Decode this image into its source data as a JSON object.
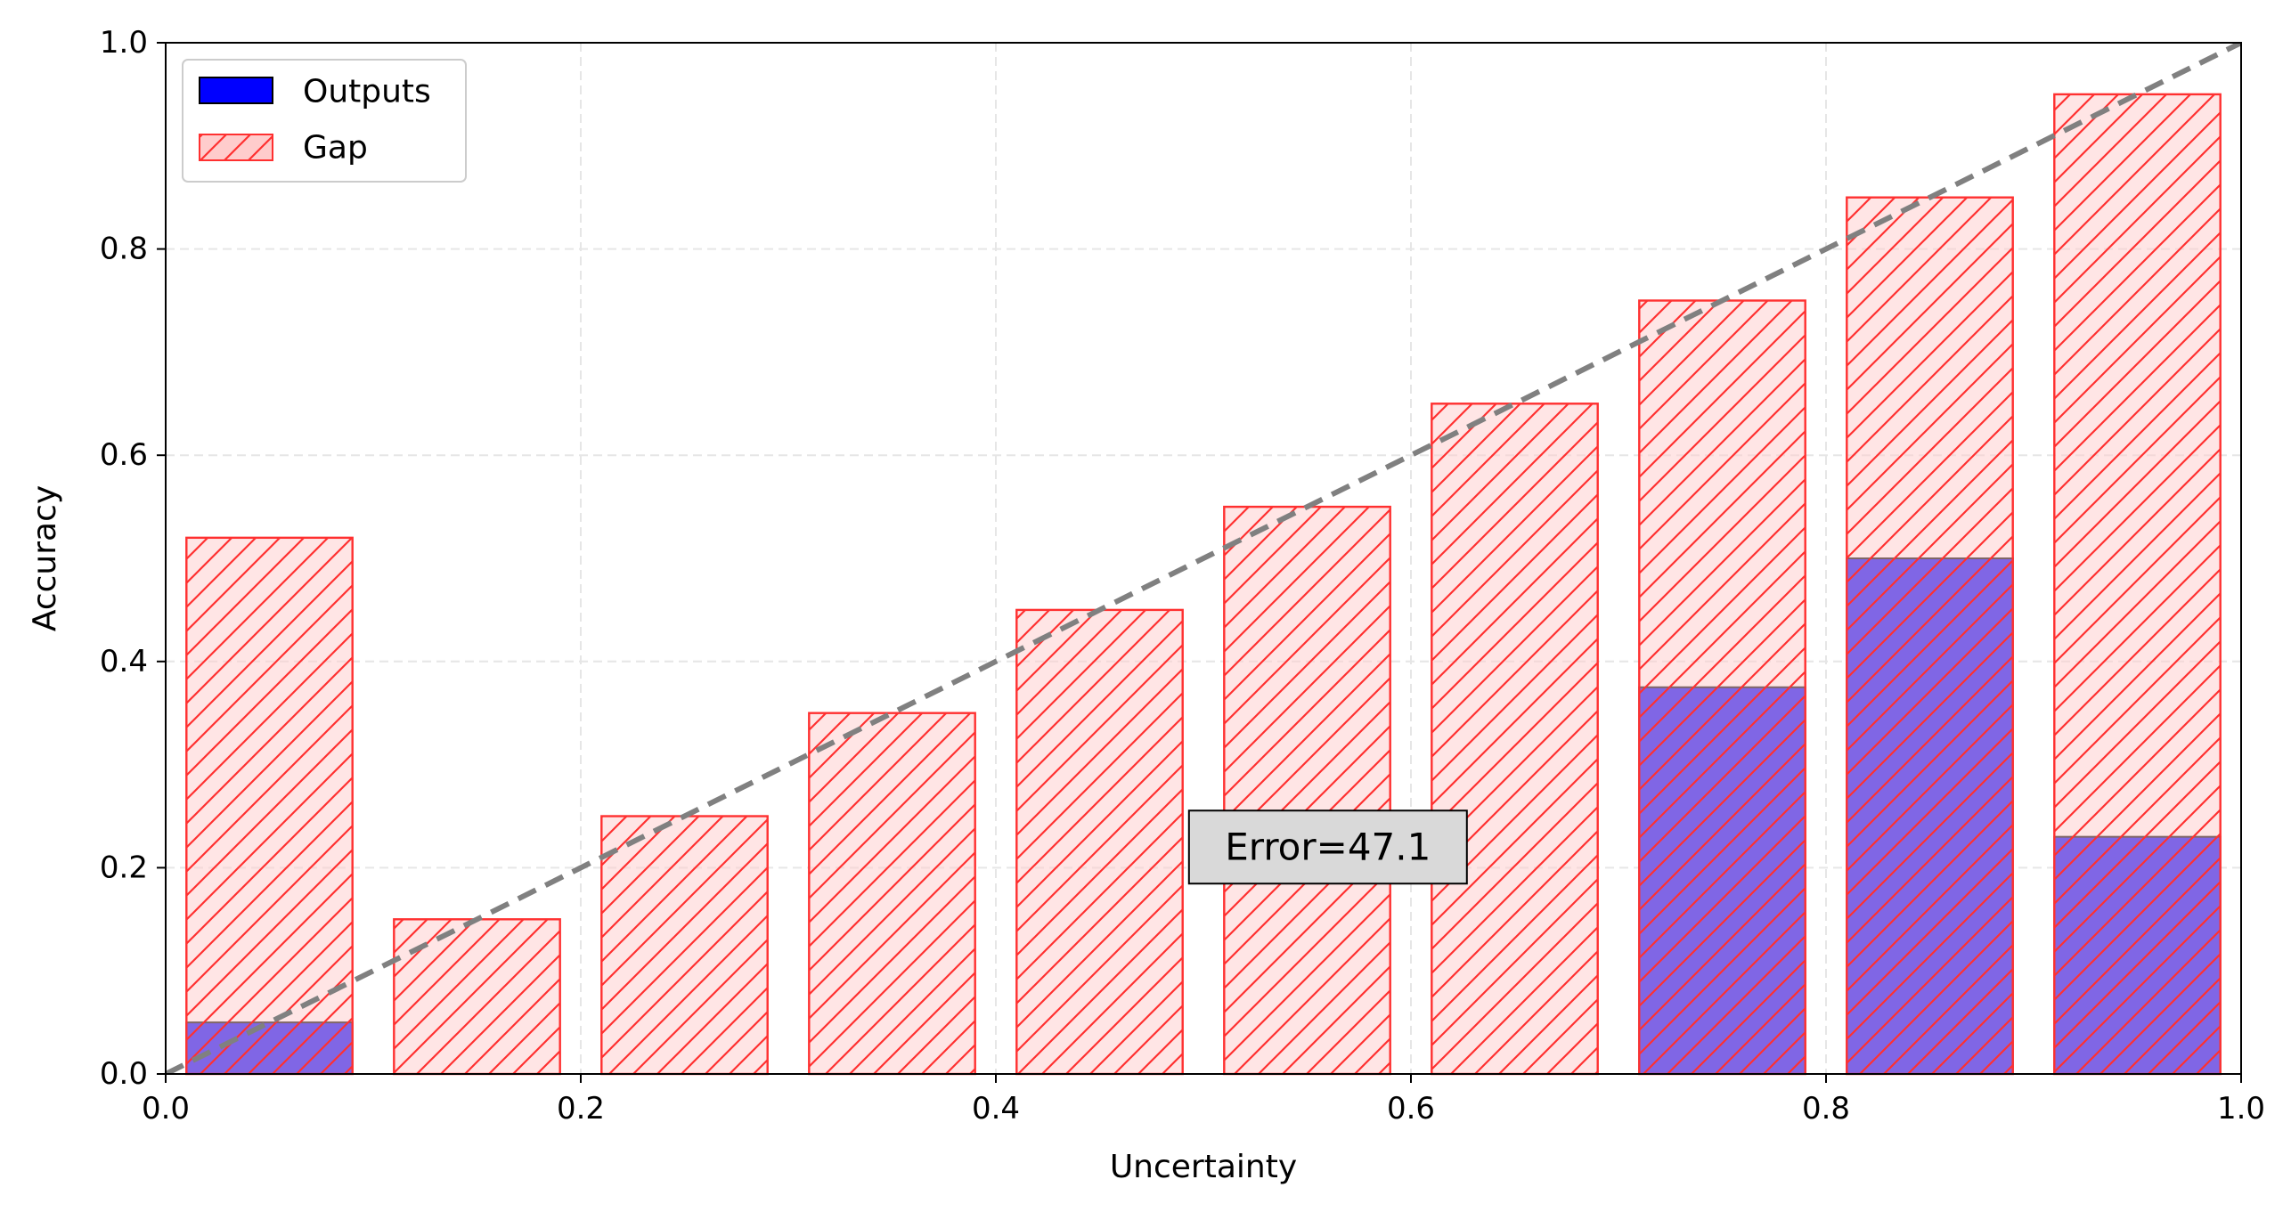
{
  "chart_data": {
    "type": "bar",
    "xlabel": "Uncertainty",
    "ylabel": "Accuracy",
    "xlim": [
      0.0,
      1.0
    ],
    "ylim": [
      0.0,
      1.0
    ],
    "xticks": [
      "0.0",
      "0.2",
      "0.4",
      "0.6",
      "0.8",
      "1.0"
    ],
    "yticks": [
      "0.0",
      "0.2",
      "0.4",
      "0.6",
      "0.8",
      "1.0"
    ],
    "grid": true,
    "legend_position": "top-left",
    "bin_centers": [
      0.05,
      0.15,
      0.25,
      0.35,
      0.45,
      0.55,
      0.65,
      0.75,
      0.85,
      0.95
    ],
    "bar_width": 0.08,
    "series": [
      {
        "name": "Outputs",
        "values": [
          0.05,
          0.0,
          0.0,
          0.0,
          0.0,
          0.0,
          0.0,
          0.375,
          0.5,
          0.23
        ],
        "color": "#0000ff"
      },
      {
        "name": "Gap",
        "values": [
          0.52,
          0.15,
          0.25,
          0.35,
          0.45,
          0.55,
          0.65,
          0.75,
          0.85,
          0.95
        ],
        "color": "#ff0000",
        "fill": "#ffcccc",
        "hatch": "//"
      }
    ],
    "reference_line": {
      "style": "dashed",
      "color": "#808080",
      "from": [
        0,
        0
      ],
      "to": [
        1,
        1
      ]
    },
    "annotation": {
      "text": "Error=47.1",
      "x": 0.56,
      "y": 0.22
    }
  }
}
